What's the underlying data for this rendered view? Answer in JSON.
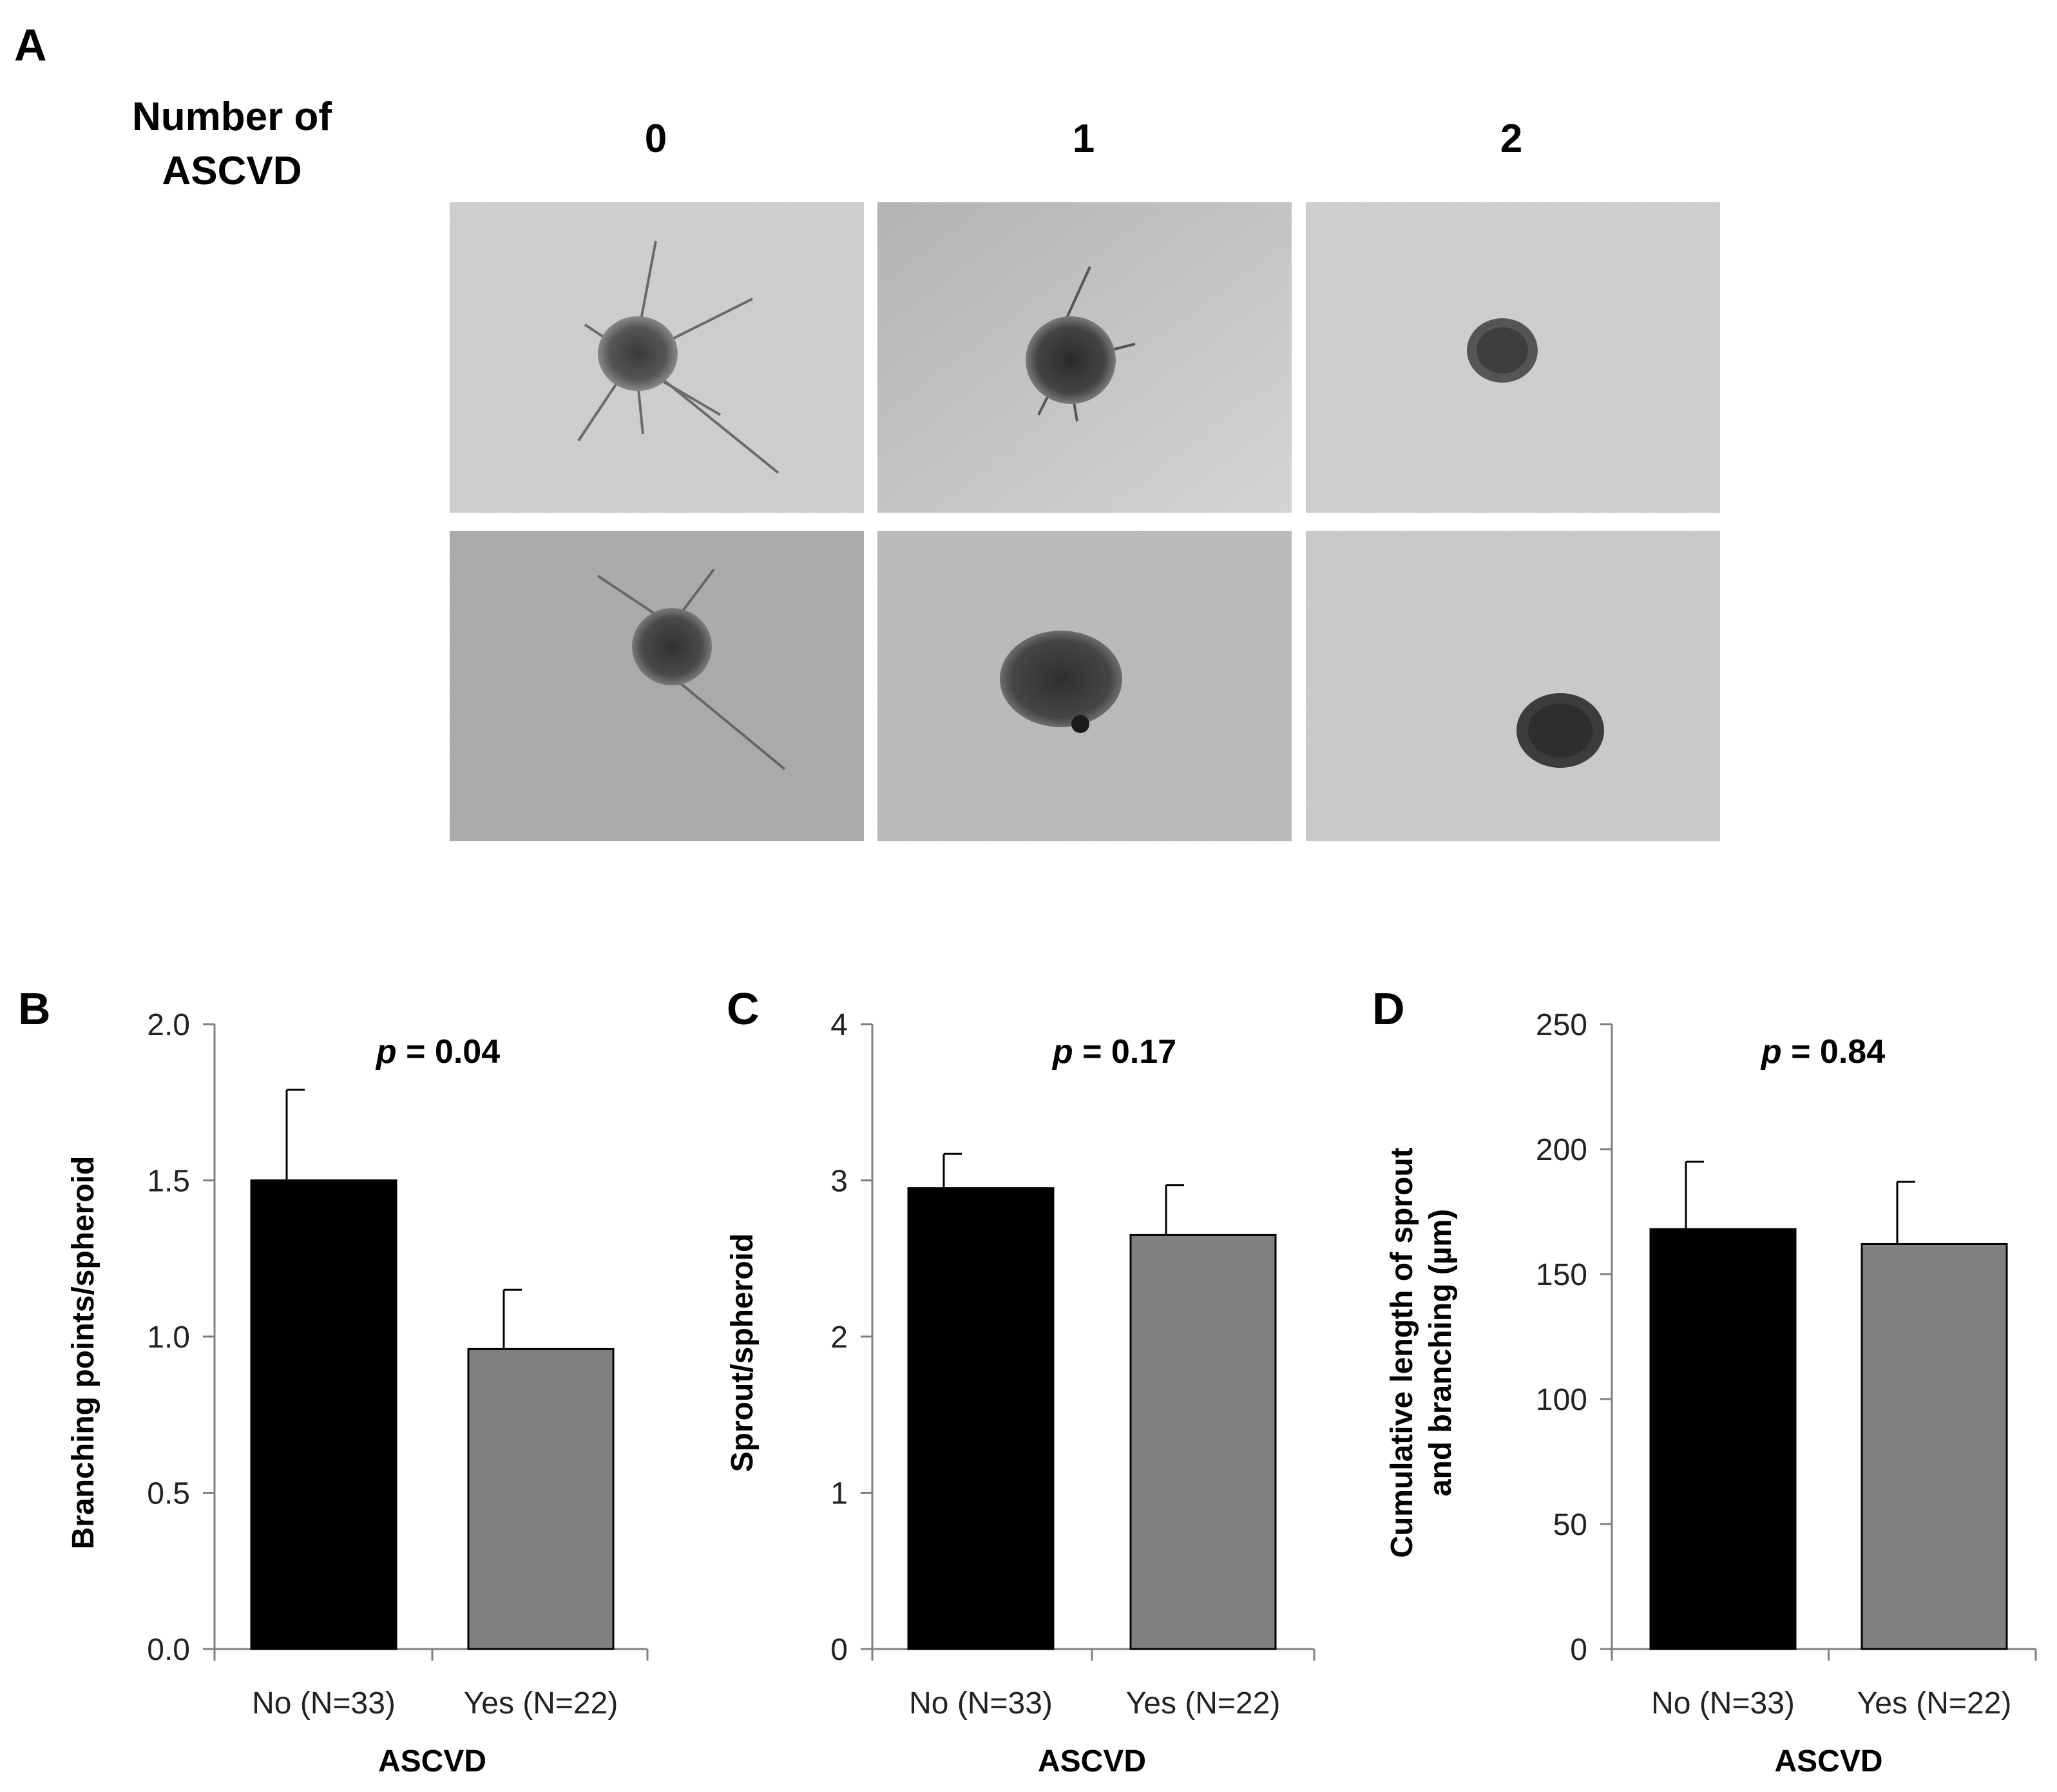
{
  "panel_a": {
    "letter": "A",
    "row_title_line1": "Number of",
    "row_title_line2": "ASCVD",
    "column_headers": [
      "0",
      "1",
      "2"
    ]
  },
  "colors": {
    "no_bar": "#000000",
    "yes_bar": "#808080",
    "axis": "#7f7f7f"
  },
  "chart_data": [
    {
      "panel": "B",
      "type": "bar",
      "categories": [
        "No (N=33)",
        "Yes (N=22)"
      ],
      "values": [
        1.5,
        0.96
      ],
      "errors": [
        0.29,
        0.19
      ],
      "bar_colors": [
        "#000000",
        "#808080"
      ],
      "ylim": [
        0,
        2.0
      ],
      "yticks": [
        "0.0",
        "0.5",
        "1.0",
        "1.5",
        "2.0"
      ],
      "ylabel": "Branching points/spheroid",
      "ylabel_line2": "",
      "xlabel": "ASCVD",
      "annotation_p": "p",
      "annotation_value": " = 0.04",
      "grid": false
    },
    {
      "panel": "C",
      "type": "bar",
      "categories": [
        "No (N=33)",
        "Yes (N=22)"
      ],
      "values": [
        2.95,
        2.65
      ],
      "errors": [
        0.22,
        0.32
      ],
      "bar_colors": [
        "#000000",
        "#808080"
      ],
      "ylim": [
        0,
        4
      ],
      "yticks": [
        "0",
        "1",
        "2",
        "3",
        "4"
      ],
      "ylabel": "Sprout/spheroid",
      "ylabel_line2": "",
      "xlabel": "ASCVD",
      "annotation_p": "p",
      "annotation_value": " = 0.17",
      "grid": false
    },
    {
      "panel": "D",
      "type": "bar",
      "categories": [
        "No (N=33)",
        "Yes (N=22)"
      ],
      "values": [
        168,
        162
      ],
      "errors": [
        27,
        25
      ],
      "bar_colors": [
        "#000000",
        "#808080"
      ],
      "ylim": [
        0,
        250
      ],
      "yticks": [
        "0",
        "50",
        "100",
        "150",
        "200",
        "250"
      ],
      "ylabel": "Cumulative length of sprout",
      "ylabel_line2": "and branching (µm)",
      "xlabel": "ASCVD",
      "annotation_p": "p",
      "annotation_value": " = 0.84",
      "grid": false
    }
  ]
}
